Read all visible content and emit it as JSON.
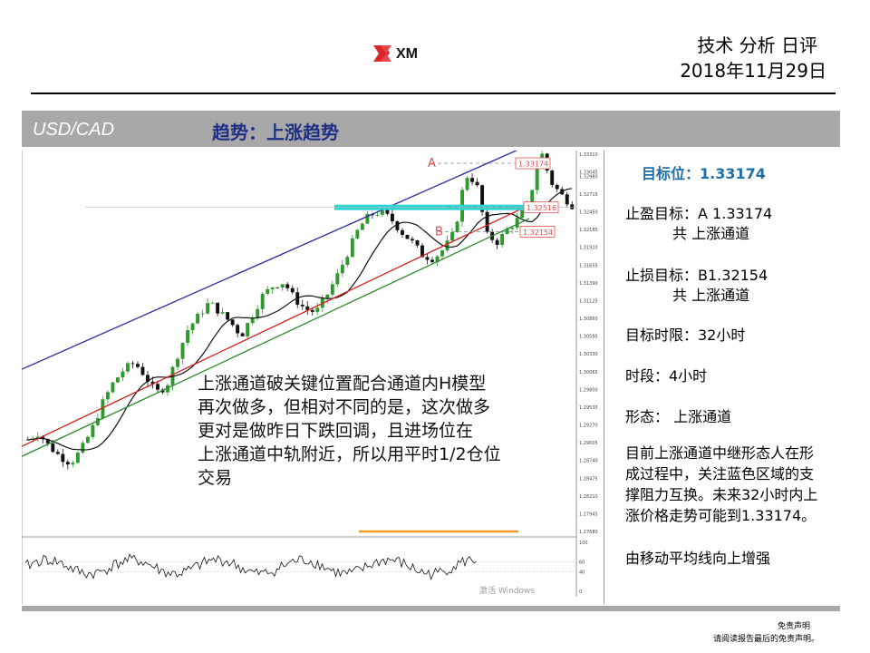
{
  "header": {
    "logo_text": "XM",
    "title": "技术 分析 日评",
    "date": "2018年11月29日"
  },
  "pair_bar": {
    "pair": "USD/CAD",
    "trend": "趋势：上涨趋势"
  },
  "chart_overlay_text": [
    "上涨通道破关键位置配合通道内H模型",
    "再次做多，但相对不同的是，这次做多",
    "更对是做昨日下跌回调，且进场位在",
    "上涨通道中轨附近，所以用平时1/2仓位",
    "交易"
  ],
  "chart_data": {
    "type": "line",
    "pair": "USD/CAD",
    "timeframe": "4小时",
    "series": [
      {
        "values": [
          1.2905,
          1.2915,
          1.2895,
          1.288,
          1.287,
          1.289,
          1.292,
          1.296,
          1.299,
          1.301,
          1.302,
          1.3,
          1.2975,
          1.2985,
          1.303,
          1.307,
          1.309,
          1.311,
          1.3095,
          1.308,
          1.306,
          1.309,
          1.312,
          1.3135,
          1.314,
          1.3115,
          1.31,
          1.3095,
          1.312,
          1.315,
          1.3185,
          1.322,
          1.324,
          1.3245,
          1.3235,
          1.3215,
          1.32,
          1.318,
          1.3175,
          1.319,
          1.3215,
          1.33,
          1.329,
          1.321,
          1.32,
          1.322,
          1.3235,
          1.326,
          1.334,
          1.329,
          1.327,
          1.3255
        ]
      }
    ],
    "price_labels": [
      {
        "label": "A",
        "value": "1.33174",
        "color": "#e05050"
      },
      {
        "label": "",
        "value": "1.32516",
        "color": "#e05050"
      },
      {
        "label": "B",
        "value": "1.32154",
        "color": "#e05050"
      }
    ],
    "y_ticks": [
      "1.33310",
      "1.33045",
      "1.32980",
      "1.32715",
      "1.32450",
      "1.32185",
      "1.31920",
      "1.31655",
      "1.31390",
      "1.31125",
      "1.30860",
      "1.30595",
      "1.30330",
      "1.30065",
      "1.29800",
      "1.29535",
      "1.29270",
      "1.29005",
      "1.28740",
      "1.28475",
      "1.28210",
      "1.27945",
      "1.27680"
    ],
    "oscillator_ticks": [
      "100",
      "60",
      "40",
      "0"
    ],
    "watermark": "激活 Windows",
    "colors": {
      "upper_channel": "#2a2aa0",
      "middle_channel": "#d62020",
      "lower_channel": "#2f8a2f",
      "moving_average": "#111111",
      "support_zone": "#2ed3d3",
      "orange_line": "#f59a23",
      "bull_candle": "#2e9a2e",
      "bear_candle": "#111111"
    }
  },
  "sidebar": {
    "target": "目标位：1.33174",
    "take_profit_label": "止盈目标：",
    "take_profit_value": "A 1.33174",
    "take_profit_note": "共 上涨通道",
    "stop_loss_label": "止损目标：",
    "stop_loss_value": "B1.32154",
    "stop_loss_note": "共 上涨通道",
    "time_limit": "目标时限：32小时",
    "period": "时段：4小时",
    "pattern": "形态：  上涨通道",
    "summary": [
      "目前上涨通道中继形态人在形",
      "成过程中，关注蓝色区域的支",
      "撑阻力互换。未来32小时内上",
      "涨价格走势可能到1.33174。"
    ],
    "ma_note": "由移动平均线向上增强"
  },
  "footer": {
    "disclaimer_title": "免责声明",
    "disclaimer_text": "请阅读报告最后的免责声明。"
  }
}
